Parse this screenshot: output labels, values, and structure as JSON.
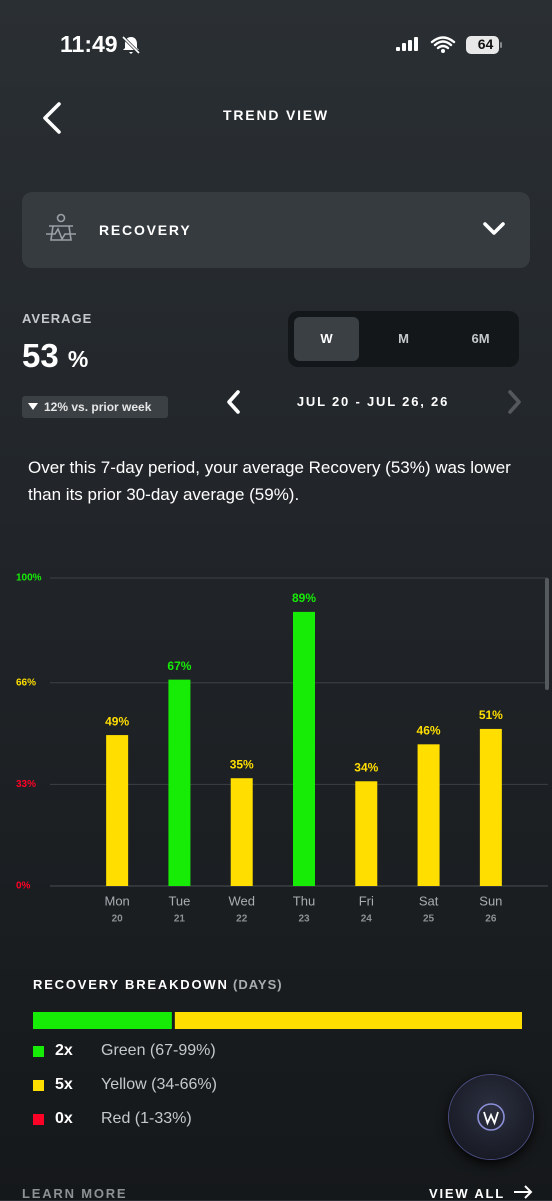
{
  "status_bar": {
    "time": "11:49",
    "battery": "64"
  },
  "header": {
    "title": "TREND VIEW"
  },
  "selector": {
    "label": "RECOVERY"
  },
  "average": {
    "label": "AVERAGE",
    "value": "53",
    "unit": "%",
    "change": "12% vs. prior week"
  },
  "tabs": {
    "items": [
      "W",
      "M",
      "6M"
    ],
    "active": 0
  },
  "date_range": "JUL 20 - JUL 26, 26",
  "summary": "Over this 7-day period, your average Recovery (53%) was lower than its prior 30-day average (59%).",
  "chart_data": {
    "type": "bar",
    "categories": [
      "Mon",
      "Tue",
      "Wed",
      "Thu",
      "Fri",
      "Sat",
      "Sun"
    ],
    "dates": [
      "20",
      "21",
      "22",
      "23",
      "24",
      "25",
      "26"
    ],
    "values": [
      49,
      67,
      35,
      89,
      34,
      46,
      51
    ],
    "value_labels": [
      "49%",
      "67%",
      "35%",
      "89%",
      "34%",
      "46%",
      "51%"
    ],
    "colors": [
      "#ffde00",
      "#16ec06",
      "#ffde00",
      "#16ec06",
      "#ffde00",
      "#ffde00",
      "#ffde00"
    ],
    "ylim": [
      0,
      100
    ],
    "yticks": [
      {
        "value": 0,
        "label": "0%"
      },
      {
        "value": 33,
        "label": "33%"
      },
      {
        "value": 66,
        "label": "66%"
      },
      {
        "value": 100,
        "label": "100%"
      }
    ],
    "ytick_colors": [
      "#ff0026",
      "#ff0026",
      "#ffde00",
      "#16ec06"
    ],
    "grid": true
  },
  "breakdown": {
    "title": "RECOVERY BREAKDOWN",
    "subtitle": "(DAYS)",
    "items": [
      {
        "count": {
          "value": 2,
          "label": "2x"
        },
        "label": "Green (67-99%)",
        "color": "#16ec06"
      },
      {
        "count": {
          "value": 5,
          "label": "5x"
        },
        "label": "Yellow (34-66%)",
        "color": "#ffde00"
      },
      {
        "count": {
          "value": 0,
          "label": "0x"
        },
        "label": "Red (1-33%)",
        "color": "#ff0026"
      }
    ]
  },
  "footer": {
    "left": "LEARN MORE",
    "right": "VIEW ALL"
  }
}
